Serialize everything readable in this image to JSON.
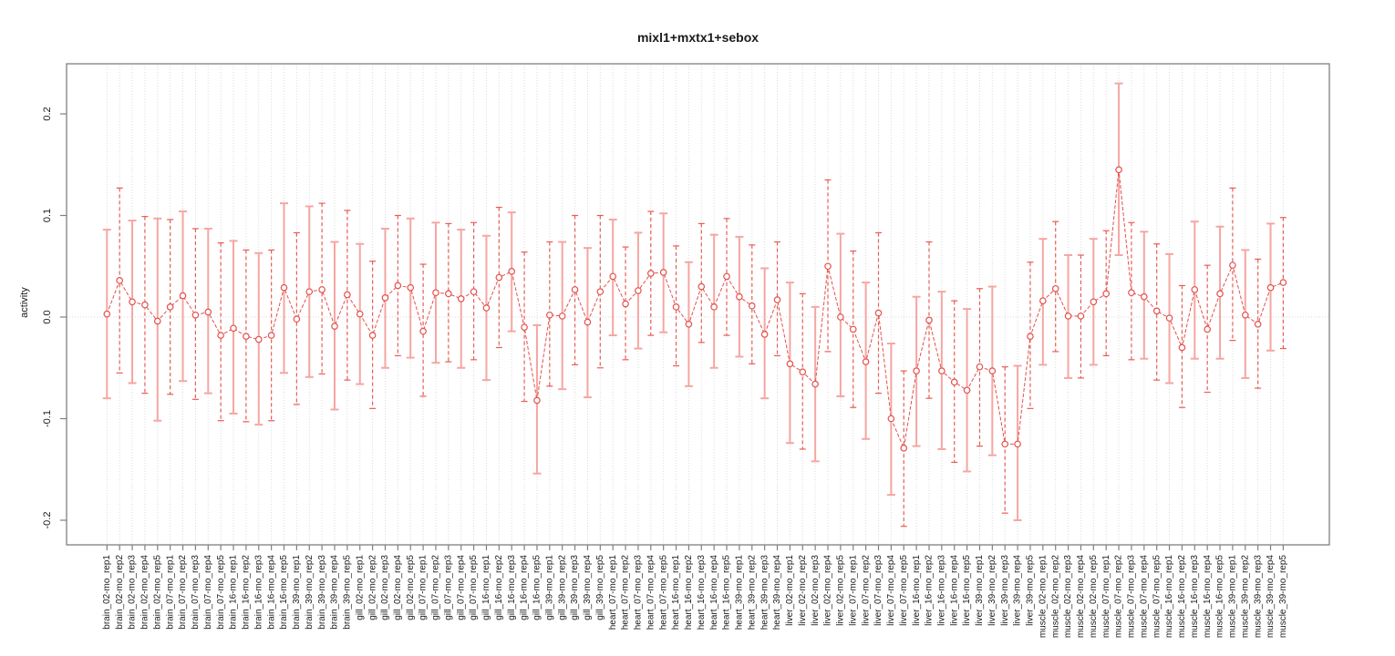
{
  "title": "mixl1+mxtx1+sebox",
  "chart_data": {
    "type": "scatter",
    "title": "mixl1+mxtx1+sebox",
    "xlabel": "",
    "ylabel": "activity",
    "legend_position": "none",
    "grid": "dotted vertical line at every category; dotted horizontal line at 0",
    "y_ticks": [
      0.2,
      0.1,
      0.0,
      -0.1,
      -0.2
    ],
    "ylim": [
      -0.224,
      0.249
    ],
    "marker": "open-circle",
    "line_style": "dashed",
    "point_color": "#e4504c",
    "solid_bar_color": "#f5a6a2",
    "dashed_bar_color": "#e85d55",
    "grid_color": "#dcdcdc",
    "frame_color": "#7f7f7f",
    "categories": [
      "brain_02-mo_rep1",
      "brain_02-mo_rep2",
      "brain_02-mo_rep3",
      "brain_02-mo_rep4",
      "brain_02-mo_rep5",
      "brain_07-mo_rep1",
      "brain_07-mo_rep2",
      "brain_07-mo_rep3",
      "brain_07-mo_rep4",
      "brain_07-mo_rep5",
      "brain_16-mo_rep1",
      "brain_16-mo_rep2",
      "brain_16-mo_rep3",
      "brain_16-mo_rep4",
      "brain_16-mo_rep5",
      "brain_39-mo_rep1",
      "brain_39-mo_rep2",
      "brain_39-mo_rep3",
      "brain_39-mo_rep4",
      "brain_39-mo_rep5",
      "gill_02-mo_rep1",
      "gill_02-mo_rep2",
      "gill_02-mo_rep3",
      "gill_02-mo_rep4",
      "gill_02-mo_rep5",
      "gill_07-mo_rep1",
      "gill_07-mo_rep2",
      "gill_07-mo_rep3",
      "gill_07-mo_rep4",
      "gill_07-mo_rep5",
      "gill_16-mo_rep1",
      "gill_16-mo_rep2",
      "gill_16-mo_rep3",
      "gill_16-mo_rep4",
      "gill_16-mo_rep5",
      "gill_39-mo_rep1",
      "gill_39-mo_rep2",
      "gill_39-mo_rep3",
      "gill_39-mo_rep4",
      "gill_39-mo_rep5",
      "heart_07-mo_rep1",
      "heart_07-mo_rep2",
      "heart_07-mo_rep3",
      "heart_07-mo_rep4",
      "heart_07-mo_rep5",
      "heart_16-mo_rep1",
      "heart_16-mo_rep2",
      "heart_16-mo_rep3",
      "heart_16-mo_rep4",
      "heart_16-mo_rep5",
      "heart_39-mo_rep1",
      "heart_39-mo_rep2",
      "heart_39-mo_rep3",
      "heart_39-mo_rep4",
      "liver_02-mo_rep1",
      "liver_02-mo_rep2",
      "liver_02-mo_rep3",
      "liver_02-mo_rep4",
      "liver_02-mo_rep5",
      "liver_07-mo_rep1",
      "liver_07-mo_rep2",
      "liver_07-mo_rep3",
      "liver_07-mo_rep4",
      "liver_07-mo_rep5",
      "liver_16-mo_rep1",
      "liver_16-mo_rep2",
      "liver_16-mo_rep3",
      "liver_16-mo_rep4",
      "liver_16-mo_rep5",
      "liver_39-mo_rep1",
      "liver_39-mo_rep2",
      "liver_39-mo_rep3",
      "liver_39-mo_rep4",
      "liver_39-mo_rep5",
      "muscle_02-mo_rep1",
      "muscle_02-mo_rep2",
      "muscle_02-mo_rep3",
      "muscle_02-mo_rep4",
      "muscle_02-mo_rep5",
      "muscle_07-mo_rep1",
      "muscle_07-mo_rep2",
      "muscle_07-mo_rep3",
      "muscle_07-mo_rep4",
      "muscle_07-mo_rep5",
      "muscle_16-mo_rep1",
      "muscle_16-mo_rep2",
      "muscle_16-mo_rep3",
      "muscle_16-mo_rep4",
      "muscle_16-mo_rep5",
      "muscle_39-mo_rep1",
      "muscle_39-mo_rep2",
      "muscle_39-mo_rep3",
      "muscle_39-mo_rep4",
      "muscle_39-mo_rep5"
    ],
    "series": [
      {
        "name": "activity",
        "values": [
          0.003,
          0.036,
          0.015,
          0.012,
          -0.004,
          0.01,
          0.021,
          0.002,
          0.005,
          -0.018,
          -0.011,
          -0.019,
          -0.022,
          -0.018,
          0.029,
          -0.002,
          0.025,
          0.027,
          -0.009,
          0.022,
          0.003,
          -0.018,
          0.019,
          0.031,
          0.029,
          -0.014,
          0.024,
          0.023,
          0.018,
          0.025,
          0.009,
          0.039,
          0.045,
          -0.01,
          -0.082,
          0.002,
          0.001,
          0.027,
          -0.005,
          0.025,
          0.04,
          0.013,
          0.026,
          0.043,
          0.044,
          0.01,
          -0.007,
          0.03,
          0.01,
          0.04,
          0.02,
          0.011,
          -0.017,
          0.017,
          -0.046,
          -0.054,
          -0.066,
          0.05,
          0.0,
          -0.012,
          -0.044,
          0.004,
          -0.1,
          -0.129,
          -0.053,
          -0.003,
          -0.053,
          -0.064,
          -0.072,
          -0.049,
          -0.053,
          -0.125,
          -0.125,
          -0.019,
          0.016,
          0.028,
          0.001,
          0.001,
          0.015,
          0.023,
          0.145,
          0.024,
          0.02,
          0.006,
          -0.001,
          -0.03,
          0.027,
          -0.012,
          0.023,
          0.051,
          0.002,
          -0.007,
          0.029,
          0.034
        ]
      }
    ],
    "upper": [
      0.086,
      0.127,
      0.095,
      0.099,
      0.097,
      0.096,
      0.104,
      0.087,
      0.087,
      0.073,
      0.075,
      0.066,
      0.063,
      0.066,
      0.112,
      0.083,
      0.109,
      0.112,
      0.074,
      0.105,
      0.072,
      0.055,
      0.087,
      0.1,
      0.097,
      0.052,
      0.093,
      0.092,
      0.086,
      0.093,
      0.08,
      0.108,
      0.103,
      0.064,
      -0.008,
      0.074,
      0.074,
      0.1,
      0.068,
      0.1,
      0.096,
      0.069,
      0.083,
      0.104,
      0.102,
      0.07,
      0.054,
      0.092,
      0.081,
      0.097,
      0.079,
      0.071,
      0.048,
      0.074,
      0.034,
      0.023,
      0.01,
      0.135,
      0.082,
      0.065,
      0.034,
      0.083,
      -0.026,
      -0.053,
      0.02,
      0.074,
      0.025,
      0.016,
      0.008,
      0.028,
      0.03,
      -0.049,
      -0.048,
      0.054,
      0.077,
      0.094,
      0.061,
      0.061,
      0.077,
      0.085,
      0.23,
      0.093,
      0.084,
      0.072,
      0.062,
      0.031,
      0.094,
      0.051,
      0.089,
      0.127,
      0.066,
      0.057,
      0.092,
      0.098
    ],
    "lower": [
      -0.08,
      -0.055,
      -0.065,
      -0.075,
      -0.102,
      -0.076,
      -0.063,
      -0.081,
      -0.075,
      -0.102,
      -0.095,
      -0.103,
      -0.106,
      -0.102,
      -0.055,
      -0.086,
      -0.059,
      -0.056,
      -0.091,
      -0.062,
      -0.066,
      -0.09,
      -0.05,
      -0.038,
      -0.04,
      -0.078,
      -0.045,
      -0.044,
      -0.05,
      -0.042,
      -0.062,
      -0.03,
      -0.014,
      -0.083,
      -0.154,
      -0.068,
      -0.071,
      -0.047,
      -0.079,
      -0.05,
      -0.018,
      -0.042,
      -0.031,
      -0.018,
      -0.015,
      -0.048,
      -0.068,
      -0.025,
      -0.05,
      -0.018,
      -0.039,
      -0.046,
      -0.08,
      -0.038,
      -0.124,
      -0.13,
      -0.142,
      -0.034,
      -0.078,
      -0.089,
      -0.12,
      -0.075,
      -0.175,
      -0.206,
      -0.127,
      -0.08,
      -0.13,
      -0.143,
      -0.152,
      -0.127,
      -0.136,
      -0.193,
      -0.2,
      -0.09,
      -0.047,
      -0.034,
      -0.06,
      -0.06,
      -0.047,
      -0.038,
      0.061,
      -0.042,
      -0.041,
      -0.062,
      -0.065,
      -0.089,
      -0.041,
      -0.074,
      -0.041,
      -0.023,
      -0.06,
      -0.07,
      -0.033,
      -0.031
    ]
  }
}
